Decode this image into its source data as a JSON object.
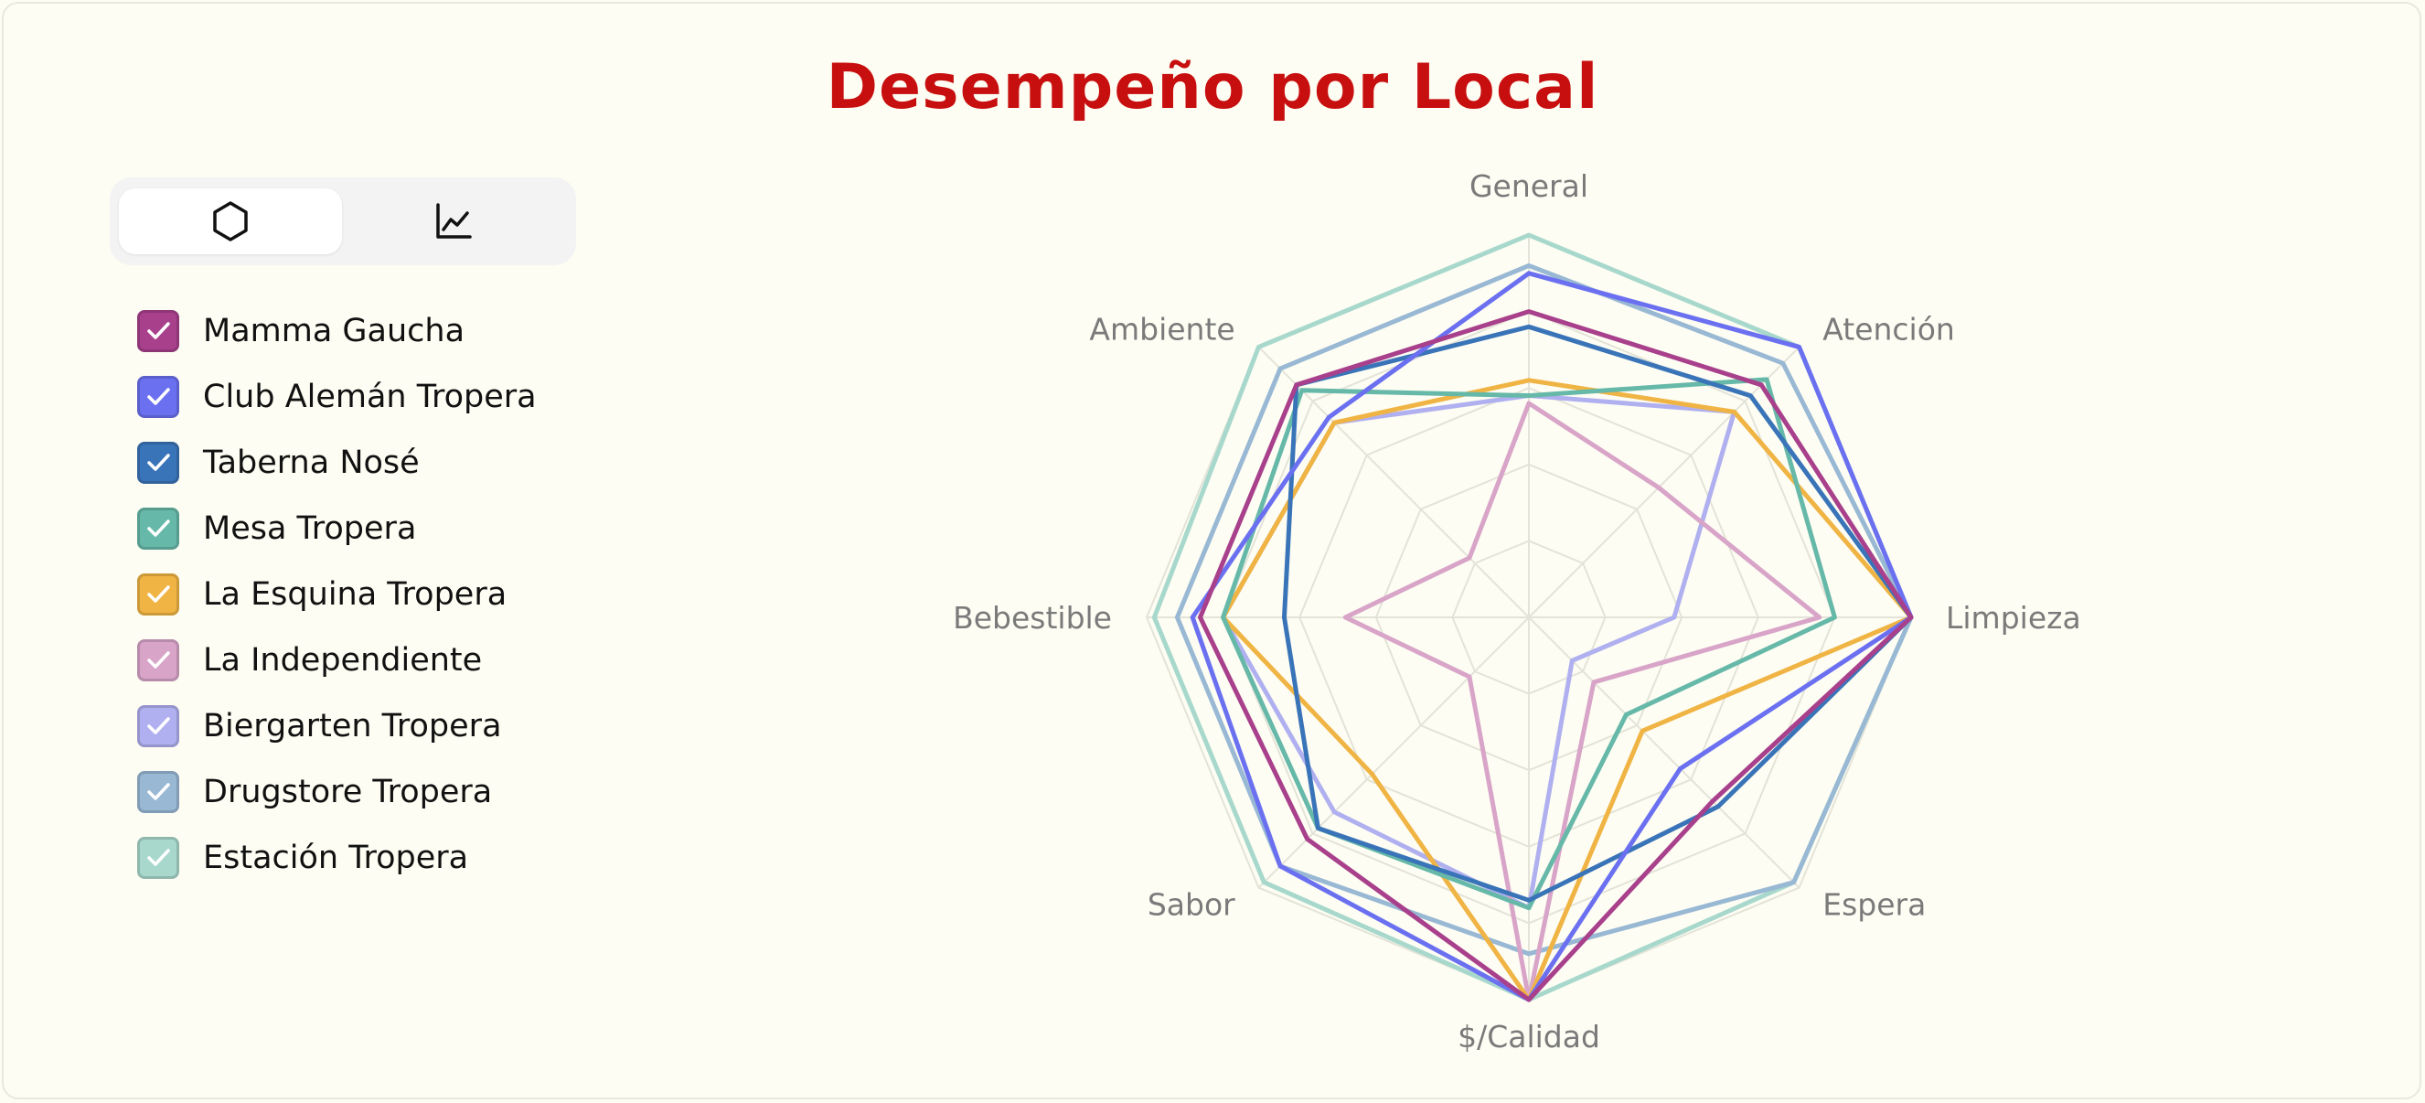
{
  "title": "Desempeño por Local",
  "view_toggle": {
    "options": [
      {
        "icon": "hexagon-icon",
        "active": true
      },
      {
        "icon": "line-chart-icon",
        "active": false
      }
    ]
  },
  "colors": {
    "background": "#fdfdf3",
    "title": "#c80f0f",
    "grid": "#e3e3d8",
    "axis_label": "#7a7a7a"
  },
  "chart_data": {
    "type": "radar",
    "title": "Desempeño por Local",
    "axes": [
      "General",
      "Atención",
      "Limpieza",
      "Espera",
      "$/Calidad",
      "Sabor",
      "Bebestible",
      "Ambiente"
    ],
    "range": [
      0,
      5
    ],
    "grid": true,
    "legend_position": "left",
    "series": [
      {
        "name": "Mamma Gaucha",
        "color": "#a8408c",
        "values": [
          4.0,
          4.3,
          5.0,
          3.4,
          5.0,
          4.1,
          4.3,
          4.3
        ]
      },
      {
        "name": "Club Alemán Tropera",
        "color": "#6b70f0",
        "values": [
          4.5,
          5.0,
          5.0,
          2.8,
          5.0,
          4.6,
          4.4,
          3.7
        ]
      },
      {
        "name": "Taberna Nosé",
        "color": "#3a74b8",
        "values": [
          3.8,
          4.1,
          5.0,
          3.5,
          3.7,
          3.9,
          3.2,
          4.3
        ]
      },
      {
        "name": "Mesa Tropera",
        "color": "#66b8a8",
        "values": [
          2.9,
          4.4,
          4.0,
          1.8,
          3.8,
          3.9,
          4.0,
          4.2
        ]
      },
      {
        "name": "La Esquina Tropera",
        "color": "#f0b444",
        "values": [
          3.1,
          3.8,
          5.0,
          2.1,
          5.0,
          2.9,
          4.0,
          3.6
        ]
      },
      {
        "name": "La Independiente",
        "color": "#d8a4c8",
        "values": [
          2.8,
          2.4,
          3.8,
          1.2,
          5.0,
          1.1,
          2.4,
          1.1
        ]
      },
      {
        "name": "Biergarten Tropera",
        "color": "#b0b0f0",
        "values": [
          2.9,
          3.8,
          1.9,
          0.8,
          3.8,
          3.6,
          4.0,
          3.6
        ]
      },
      {
        "name": "Drugstore Tropera",
        "color": "#98b8d4",
        "values": [
          4.6,
          4.7,
          5.0,
          4.9,
          4.4,
          4.6,
          4.6,
          4.6
        ]
      },
      {
        "name": "Estación Tropera",
        "color": "#a8d8cc",
        "values": [
          5.0,
          5.0,
          5.0,
          4.9,
          5.0,
          4.9,
          4.9,
          5.0
        ]
      }
    ]
  }
}
